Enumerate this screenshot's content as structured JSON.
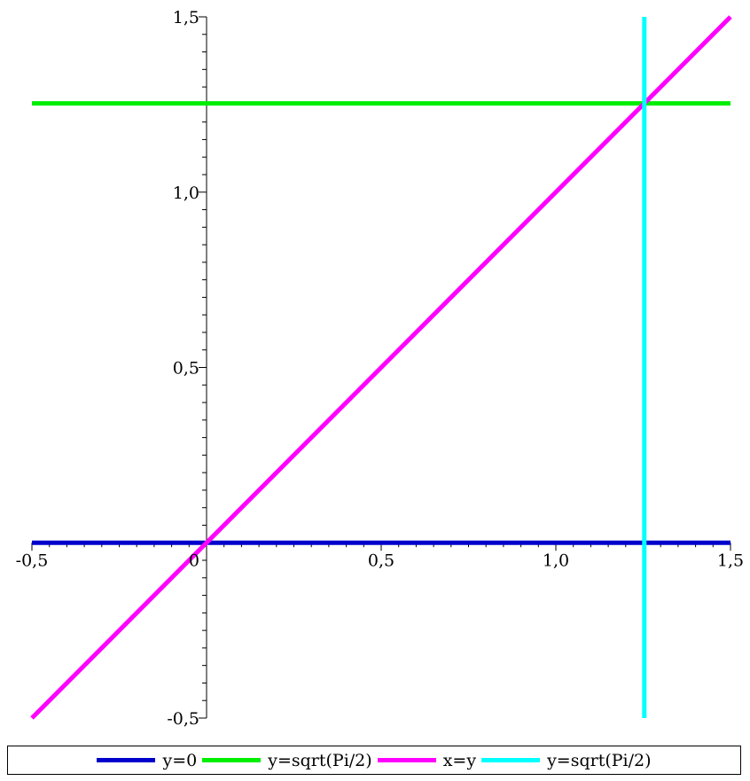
{
  "chart_data": {
    "type": "line",
    "xlim": [
      -0.5,
      1.5
    ],
    "ylim": [
      -0.5,
      1.5
    ],
    "x_ticks": [
      {
        "value": -0.5,
        "label": "-0,5"
      },
      {
        "value": 0,
        "label": "0"
      },
      {
        "value": 0.5,
        "label": "0,5"
      },
      {
        "value": 1.0,
        "label": "1,0"
      },
      {
        "value": 1.5,
        "label": "1,5"
      }
    ],
    "y_ticks": [
      {
        "value": -0.5,
        "label": "-0,5"
      },
      {
        "value": 0.5,
        "label": "0,5"
      },
      {
        "value": 1.0,
        "label": "1,0"
      },
      {
        "value": 1.5,
        "label": "1,5"
      }
    ],
    "series": [
      {
        "name": "y=0",
        "color": "#0000cc",
        "points": [
          [
            -0.5,
            0
          ],
          [
            1.5,
            0
          ]
        ]
      },
      {
        "name": "y=sqrt(Pi/2)",
        "color": "#00ee00",
        "points": [
          [
            -0.5,
            1.2533
          ],
          [
            1.5,
            1.2533
          ]
        ]
      },
      {
        "name": "x=y",
        "color": "#ff00ff",
        "points": [
          [
            -0.5,
            -0.5
          ],
          [
            1.5,
            1.5
          ]
        ]
      },
      {
        "name": "y=sqrt(Pi/2)",
        "color": "#00ffff",
        "points": [
          [
            1.2533,
            -0.5
          ],
          [
            1.2533,
            1.5
          ]
        ]
      }
    ],
    "grid": false,
    "legend_position": "bottom"
  }
}
